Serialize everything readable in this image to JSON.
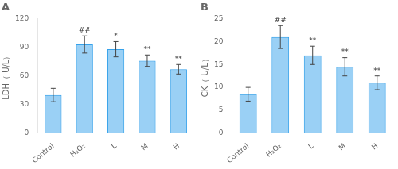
{
  "chart_data": [
    {
      "type": "bar",
      "title": "A",
      "categories": [
        "Control",
        "H₂O₂",
        "L",
        "M",
        "H"
      ],
      "values": [
        40,
        93,
        88,
        76,
        67
      ],
      "errors": [
        7,
        9,
        8,
        6,
        5
      ],
      "annotations": [
        null,
        "##",
        "*",
        "**",
        "**"
      ],
      "ylabel": "LDH（ U/L）",
      "ylim": [
        0,
        120
      ],
      "yticks": [
        0,
        30,
        60,
        90,
        120
      ],
      "grid": false
    },
    {
      "type": "bar",
      "title": "B",
      "categories": [
        "Control",
        "H₂O₂",
        "L",
        "M",
        "H"
      ],
      "values": [
        8.5,
        21,
        17,
        14.5,
        11
      ],
      "errors": [
        1.5,
        2.5,
        2.0,
        2.0,
        1.5
      ],
      "annotations": [
        null,
        "##",
        "**",
        "**",
        "**"
      ],
      "ylabel": "CK（ U/L）",
      "ylim": [
        0,
        25
      ],
      "yticks": [
        0,
        5,
        10,
        15,
        20,
        25
      ],
      "grid": false
    }
  ]
}
